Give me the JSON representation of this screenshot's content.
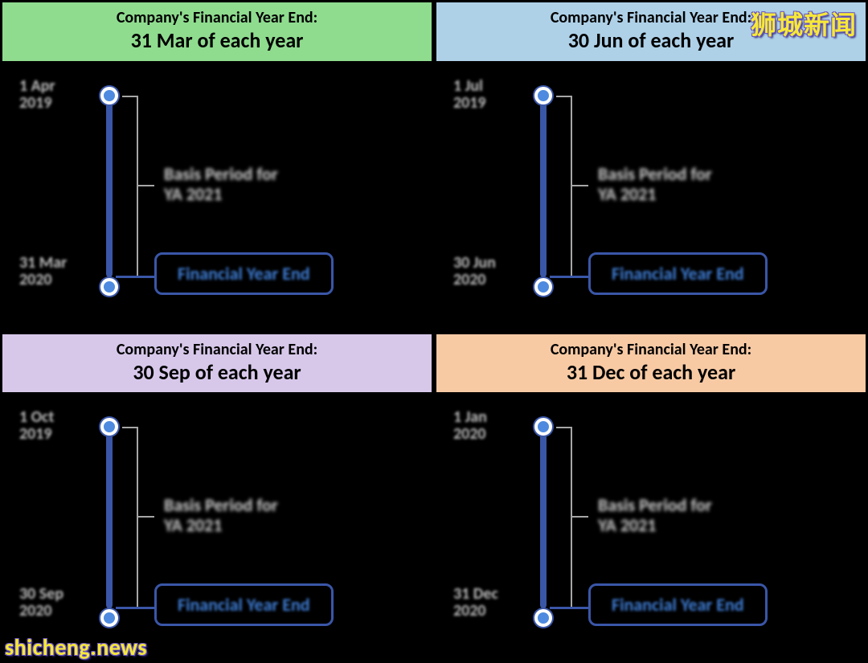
{
  "background_color": "#000000",
  "watermark_top": "狮城新闻",
  "watermark_bottom": "shicheng.news",
  "watermark_color": "#f7e838",
  "watermark_outline": "#6a56c0",
  "timeline": {
    "line_color": "#3a56a7",
    "node_fill": "#4e8adf",
    "node_border": "#ffffff",
    "bracket_color": "#a6a6a6",
    "basis_text_color": "#cfcfcf",
    "date_text_color": "#bdbdbd",
    "fye_box_border": "#3a56a7",
    "fye_text_color": "#3f7ed6",
    "basis_fontsize": 22,
    "date_fontsize": 20,
    "fye_fontsize": 22
  },
  "panels": [
    {
      "header_line1": "Company's Financial Year End:",
      "header_line2": "31 Mar of each year",
      "header_bg": "#8fdc8f",
      "start_date": "1 Apr\n2019",
      "end_date": "31 Mar\n2020",
      "basis_label": "Basis Period for\nYA 2021",
      "fye_label": "Financial Year End"
    },
    {
      "header_line1": "Company's Financial Year End:",
      "header_line2": "30 Jun of each year",
      "header_bg": "#aed1e8",
      "start_date": "1 Jul\n2019",
      "end_date": "30 Jun\n2020",
      "basis_label": "Basis Period for\nYA 2021",
      "fye_label": "Financial Year End"
    },
    {
      "header_line1": "Company's Financial Year End:",
      "header_line2": "30 Sep of each year",
      "header_bg": "#d7c8ea",
      "start_date": "1 Oct\n2019",
      "end_date": "30 Sep\n2020",
      "basis_label": "Basis Period for\nYA 2021",
      "fye_label": "Financial Year End"
    },
    {
      "header_line1": "Company's Financial Year End:",
      "header_line2": "31 Dec of each year",
      "header_bg": "#f7caa4",
      "start_date": "1 Jan\n2020",
      "end_date": "31 Dec\n2020",
      "basis_label": "Basis Period for\nYA 2021",
      "fye_label": "Financial Year End"
    }
  ]
}
